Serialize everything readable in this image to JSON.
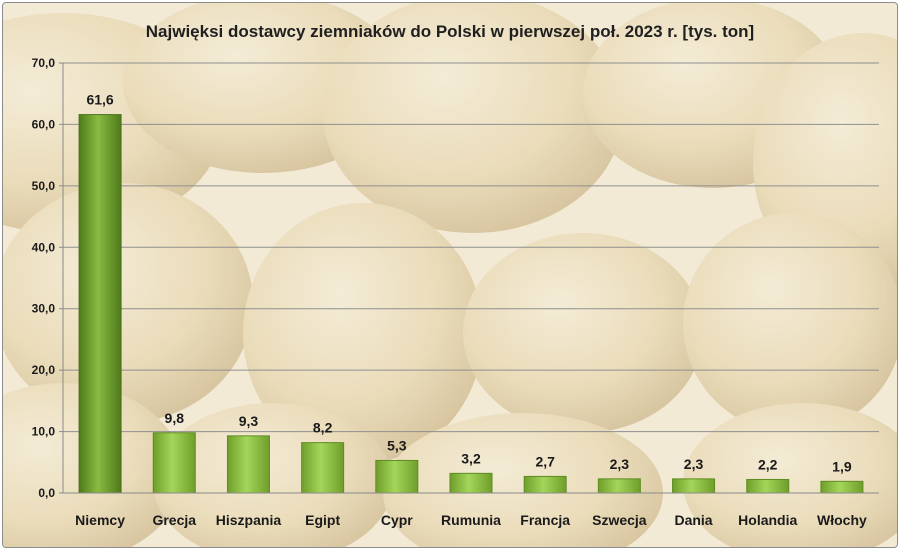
{
  "chart_data": {
    "type": "bar",
    "title": "Najwięksi dostawcy ziemniaków do Polski w pierwszej poł. 2023 r. [tys. ton]",
    "categories": [
      "Niemcy",
      "Grecja",
      "Hiszpania",
      "Egipt",
      "Cypr",
      "Rumunia",
      "Francja",
      "Szwecja",
      "Dania",
      "Holandia",
      "Włochy"
    ],
    "values": [
      61.6,
      9.8,
      9.3,
      8.2,
      5.3,
      3.2,
      2.7,
      2.3,
      2.3,
      2.2,
      1.9
    ],
    "value_labels": [
      "61,6",
      "9,8",
      "9,3",
      "8,2",
      "5,3",
      "3,2",
      "2,7",
      "2,3",
      "2,3",
      "2,2",
      "1,9"
    ],
    "ylim": [
      0,
      70
    ],
    "yticks": [
      0,
      10,
      20,
      30,
      40,
      50,
      60,
      70
    ],
    "ytick_labels": [
      "0,0",
      "10,0",
      "20,0",
      "30,0",
      "40,0",
      "50,0",
      "60,0",
      "70,0"
    ],
    "grid": true,
    "legend": "none",
    "bar_color": "#8cc63f",
    "highlight_bar_color": "#6a9a2a",
    "background": "photo of potatoes"
  }
}
